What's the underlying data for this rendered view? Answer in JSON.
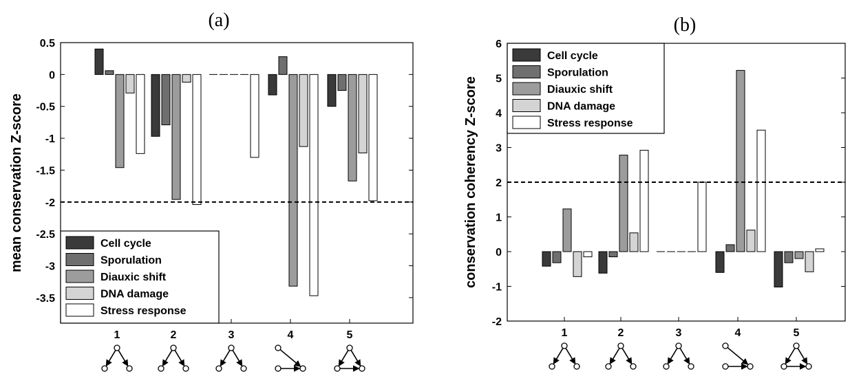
{
  "chart_data": [
    {
      "panel_label": "(a)",
      "type": "bar",
      "ylabel": "mean conservation Z-score",
      "categories": [
        "1",
        "2",
        "3",
        "4",
        "5"
      ],
      "ylim": [
        -3.9,
        0.5
      ],
      "yticks": [
        0.5,
        0,
        -0.5,
        -1,
        -1.5,
        -2,
        -2.5,
        -3,
        -3.5
      ],
      "ytick_labels": [
        "0.5",
        "0",
        "-0.5",
        "-1",
        "-1.5",
        "-2",
        "-2.5",
        "-3",
        "-3.5"
      ],
      "threshold": -2,
      "legend_position": "bottom-left",
      "series": [
        {
          "name": "Cell cycle",
          "color": "#3a3a3a",
          "values": [
            0.4,
            -0.97,
            0,
            -0.32,
            -0.5
          ]
        },
        {
          "name": "Sporulation",
          "color": "#6f6f6f",
          "values": [
            0.06,
            -0.79,
            0,
            0.28,
            -0.25
          ]
        },
        {
          "name": "Diauxic shift",
          "color": "#9c9c9c",
          "values": [
            -1.46,
            -1.96,
            0,
            -3.32,
            -1.67
          ]
        },
        {
          "name": "DNA damage",
          "color": "#d4d4d4",
          "values": [
            -0.29,
            -0.12,
            0,
            -1.13,
            -1.23
          ]
        },
        {
          "name": "Stress response",
          "color": "#ffffff",
          "values": [
            -1.24,
            -2.04,
            -1.3,
            -3.47,
            -1.98
          ]
        }
      ]
    },
    {
      "panel_label": "(b)",
      "type": "bar",
      "ylabel": "conservation coherency Z-score",
      "categories": [
        "1",
        "2",
        "3",
        "4",
        "5"
      ],
      "ylim": [
        -2,
        6
      ],
      "yticks": [
        6,
        5,
        4,
        3,
        2,
        1,
        0,
        -1,
        -2
      ],
      "ytick_labels": [
        "6",
        "5",
        "4",
        "3",
        "2",
        "1",
        "0",
        "-1",
        "-2"
      ],
      "threshold": 2,
      "legend_position": "top-left",
      "series": [
        {
          "name": "Cell cycle",
          "color": "#3a3a3a",
          "values": [
            -0.42,
            -0.62,
            0,
            -0.6,
            -1.02
          ]
        },
        {
          "name": "Sporulation",
          "color": "#6f6f6f",
          "values": [
            -0.32,
            -0.15,
            0,
            0.2,
            -0.32
          ]
        },
        {
          "name": "Diauxic shift",
          "color": "#9c9c9c",
          "values": [
            1.23,
            2.78,
            0,
            5.22,
            -0.2
          ]
        },
        {
          "name": "DNA damage",
          "color": "#d4d4d4",
          "values": [
            -0.72,
            0.54,
            0,
            0.62,
            -0.58
          ]
        },
        {
          "name": "Stress response",
          "color": "#ffffff",
          "values": [
            -0.15,
            2.92,
            2.0,
            3.5,
            0.08
          ]
        }
      ]
    }
  ],
  "motif_icons": [
    "motif-1-icon",
    "motif-2-icon",
    "motif-3-icon",
    "motif-4-icon",
    "motif-5-icon"
  ]
}
